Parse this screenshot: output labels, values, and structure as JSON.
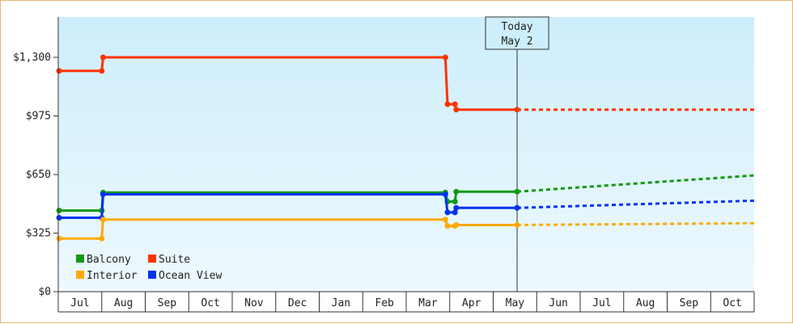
{
  "chart_data": {
    "type": "line",
    "title": "",
    "xlabel": "",
    "ylabel": "",
    "ylim": [
      0,
      1300
    ],
    "y_ticks": [
      {
        "value": 0,
        "label": "$0"
      },
      {
        "value": 325,
        "label": "$325"
      },
      {
        "value": 650,
        "label": "$650"
      },
      {
        "value": 975,
        "label": "$975"
      },
      {
        "value": 1300,
        "label": "$1,300"
      }
    ],
    "x_ticks": [
      "Jul",
      "Aug",
      "Sep",
      "Oct",
      "Nov",
      "Dec",
      "Jan",
      "Feb",
      "Mar",
      "Apr",
      "May",
      "Jun",
      "Jul",
      "Aug",
      "Sep",
      "Oct"
    ],
    "x_range": [
      -0.5,
      15.5
    ],
    "today": {
      "line1": "Today",
      "line2": "May 2",
      "x": 10.05
    },
    "grid": false,
    "legend_position": "bottom-left",
    "step": true,
    "series": [
      {
        "name": "Suite",
        "color": "#ff3300",
        "points": [
          [
            -0.48,
            1225
          ],
          [
            0.5,
            1225
          ],
          [
            0.53,
            1300
          ],
          [
            8.4,
            1300
          ],
          [
            8.45,
            1040
          ],
          [
            8.62,
            1040
          ],
          [
            8.65,
            1010
          ],
          [
            10.05,
            1010
          ]
        ],
        "forecast": [
          [
            10.05,
            1010
          ],
          [
            15.5,
            1010
          ]
        ]
      },
      {
        "name": "Balcony",
        "color": "#119911",
        "points": [
          [
            -0.48,
            450
          ],
          [
            0.5,
            450
          ],
          [
            0.53,
            550
          ],
          [
            8.4,
            550
          ],
          [
            8.45,
            500
          ],
          [
            8.62,
            500
          ],
          [
            8.65,
            555
          ],
          [
            10.05,
            555
          ]
        ],
        "forecast": [
          [
            10.05,
            555
          ],
          [
            15.5,
            645
          ]
        ]
      },
      {
        "name": "Ocean View",
        "color": "#0033ee",
        "points": [
          [
            -0.48,
            410
          ],
          [
            0.5,
            410
          ],
          [
            0.53,
            540
          ],
          [
            8.4,
            540
          ],
          [
            8.45,
            440
          ],
          [
            8.62,
            440
          ],
          [
            8.65,
            465
          ],
          [
            10.05,
            465
          ]
        ],
        "forecast": [
          [
            10.05,
            465
          ],
          [
            15.5,
            505
          ]
        ]
      },
      {
        "name": "Interior",
        "color": "#ffaa00",
        "points": [
          [
            -0.48,
            295
          ],
          [
            0.5,
            295
          ],
          [
            0.53,
            400
          ],
          [
            8.4,
            400
          ],
          [
            8.45,
            365
          ],
          [
            8.62,
            365
          ],
          [
            8.65,
            370
          ],
          [
            10.05,
            370
          ]
        ],
        "forecast": [
          [
            10.05,
            370
          ],
          [
            15.5,
            380
          ]
        ]
      }
    ],
    "legend": [
      {
        "name": "Balcony",
        "color": "#119911"
      },
      {
        "name": "Suite",
        "color": "#ff3300"
      },
      {
        "name": "Interior",
        "color": "#ffaa00"
      },
      {
        "name": "Ocean View",
        "color": "#0033ee"
      }
    ]
  }
}
